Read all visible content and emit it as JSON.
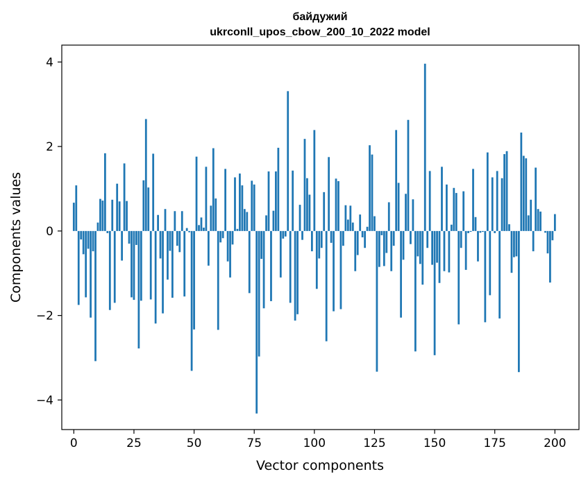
{
  "chart_data": {
    "type": "bar",
    "title_line1": "байдужий",
    "title_line2": "ukrconll_upos_cbow_200_10_2022 model",
    "xlabel": "Vector components",
    "ylabel": "Components values",
    "xlim": [
      -5,
      210
    ],
    "ylim": [
      -4.7,
      4.4
    ],
    "xticks": [
      0,
      25,
      50,
      75,
      100,
      125,
      150,
      175,
      200
    ],
    "yticks": [
      -4,
      -2,
      0,
      2,
      4
    ],
    "ytick_labels": [
      "−4",
      "−2",
      "0",
      "2",
      "4"
    ],
    "bar_color": "#1f77b4",
    "grid": false,
    "values": [
      0.67,
      1.08,
      -1.75,
      -0.2,
      -0.55,
      -1.57,
      -0.42,
      -2.05,
      -0.48,
      -3.08,
      0.2,
      0.76,
      0.72,
      1.84,
      -0.05,
      -1.87,
      0.74,
      -1.7,
      1.12,
      0.7,
      -0.7,
      1.6,
      0.71,
      -0.3,
      -1.57,
      -1.63,
      -0.33,
      -2.78,
      -1.65,
      1.2,
      2.65,
      1.03,
      -1.62,
      1.83,
      -2.19,
      0.38,
      -0.65,
      -1.95,
      0.52,
      -1.15,
      -0.47,
      -1.58,
      0.47,
      -0.35,
      -0.5,
      0.47,
      -1.55,
      0.07,
      -0.03,
      -3.31,
      -2.33,
      1.76,
      0.14,
      0.32,
      0.08,
      1.52,
      -0.82,
      0.6,
      1.96,
      0.77,
      -2.34,
      -0.27,
      -0.17,
      1.47,
      -0.72,
      -1.1,
      -0.32,
      1.27,
      0.05,
      1.36,
      1.08,
      0.52,
      0.45,
      -1.47,
      1.19,
      1.1,
      -4.32,
      -2.97,
      -0.66,
      -1.83,
      0.37,
      1.41,
      -1.66,
      0.48,
      1.41,
      1.97,
      -1.1,
      -0.18,
      -0.13,
      3.31,
      -1.7,
      1.43,
      -2.12,
      -1.97,
      0.62,
      -0.21,
      2.18,
      1.25,
      0.86,
      -0.48,
      2.39,
      -1.37,
      -0.65,
      -0.4,
      0.92,
      -2.61,
      1.75,
      -0.28,
      -1.9,
      1.24,
      1.18,
      -1.85,
      -0.35,
      0.61,
      0.27,
      0.6,
      0.2,
      -0.95,
      -0.57,
      0.39,
      -0.15,
      -0.4,
      0.1,
      2.03,
      1.81,
      0.35,
      -3.33,
      -0.85,
      -0.1,
      -0.83,
      -0.52,
      0.68,
      -0.95,
      -0.35,
      2.39,
      1.14,
      -2.05,
      -0.68,
      0.88,
      2.63,
      -0.31,
      0.75,
      -2.85,
      -0.6,
      -0.78,
      -1.27,
      3.96,
      -0.4,
      1.42,
      -0.8,
      -2.94,
      -0.75,
      -1.23,
      1.52,
      -0.95,
      1.1,
      -0.98,
      0.15,
      1.02,
      0.9,
      -2.21,
      -0.4,
      0.94,
      -0.92,
      -0.05,
      -0.02,
      1.47,
      0.33,
      -0.72,
      -0.04,
      -0.02,
      -2.16,
      1.86,
      -1.52,
      1.27,
      -0.05,
      1.42,
      -2.07,
      1.25,
      1.82,
      1.89,
      0.16,
      -0.99,
      -0.62,
      -0.6,
      -3.34,
      2.33,
      1.78,
      1.72,
      0.37,
      0.74,
      -0.48,
      1.5,
      0.52,
      0.46,
      0.0,
      -0.04,
      -0.53,
      -1.22,
      -0.22,
      0.4
    ]
  }
}
